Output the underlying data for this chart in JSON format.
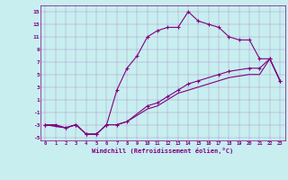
{
  "xlabel": "Windchill (Refroidissement éolien,°C)",
  "bg_color": "#c8eef0",
  "line_color": "#800080",
  "xlim": [
    -0.5,
    23.5
  ],
  "ylim": [
    -5.5,
    16
  ],
  "xticks": [
    0,
    1,
    2,
    3,
    4,
    5,
    6,
    7,
    8,
    9,
    10,
    11,
    12,
    13,
    14,
    15,
    16,
    17,
    18,
    19,
    20,
    21,
    22,
    23
  ],
  "yticks": [
    -5,
    -3,
    -1,
    1,
    3,
    5,
    7,
    9,
    11,
    13,
    15
  ],
  "series1_x": [
    0,
    1,
    2,
    3,
    4,
    5,
    6,
    7,
    8,
    9,
    10,
    11,
    12,
    13,
    14,
    15,
    16,
    17,
    18,
    19,
    20,
    21,
    22,
    23
  ],
  "series1_y": [
    -3,
    -3,
    -3.5,
    -3,
    -4.5,
    -4.5,
    -3,
    2.5,
    6,
    8,
    11,
    12,
    12.5,
    12.5,
    15,
    13.5,
    13,
    12.5,
    11,
    10.5,
    10.5,
    7.5,
    7.5,
    4
  ],
  "series2_x": [
    0,
    2,
    3,
    4,
    5,
    6,
    7,
    8,
    10,
    11,
    12,
    13,
    14,
    15,
    17,
    18,
    20,
    21,
    22,
    23
  ],
  "series2_y": [
    -3,
    -3.5,
    -3,
    -4.5,
    -4.5,
    -3,
    -3,
    -2.5,
    0,
    0.5,
    1.5,
    2.5,
    3.5,
    4,
    5,
    5.5,
    6,
    6,
    7.5,
    4
  ],
  "series3_x": [
    0,
    2,
    3,
    4,
    5,
    6,
    7,
    8,
    10,
    11,
    12,
    13,
    14,
    15,
    17,
    18,
    20,
    21,
    22,
    23
  ],
  "series3_y": [
    -3,
    -3.5,
    -3,
    -4.5,
    -4.5,
    -3,
    -3,
    -2.5,
    -0.5,
    0,
    1,
    2,
    2.5,
    3,
    4,
    4.5,
    5,
    5,
    7.5,
    4
  ]
}
